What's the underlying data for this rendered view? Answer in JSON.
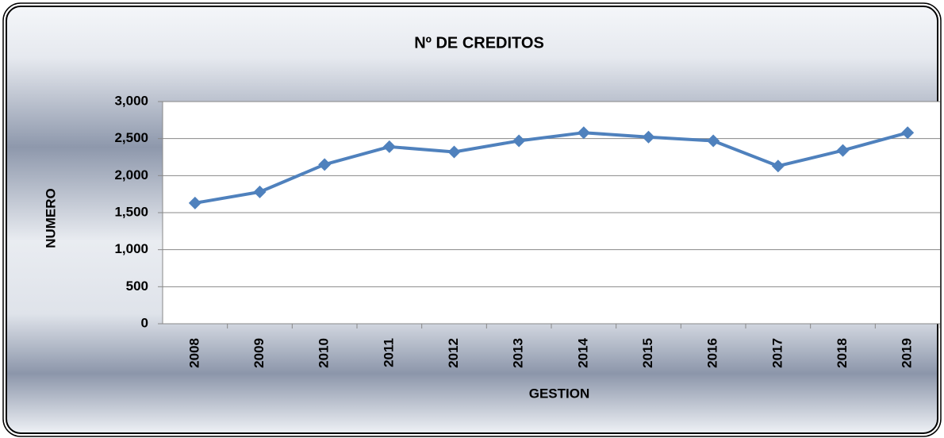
{
  "chart_data": {
    "type": "line",
    "title": "Nº DE CREDITOS",
    "x_label": "GESTION",
    "y_label": "NUMERO",
    "categories": [
      "2008",
      "2009",
      "2010",
      "2011",
      "2012",
      "2013",
      "2014",
      "2015",
      "2016",
      "2017",
      "2018",
      "2019"
    ],
    "series": [
      {
        "name": "Nº DE CREDITOS",
        "color": "#4f81bd",
        "values": [
          1630,
          1780,
          2150,
          2390,
          2320,
          2470,
          2580,
          2520,
          2470,
          2130,
          2340,
          2580
        ]
      }
    ],
    "ylim": [
      0,
      3000
    ],
    "yticks": [
      0,
      500,
      {
        "value": 1000,
        "label": "1,000"
      },
      {
        "value": 1500,
        "label": "1,500"
      },
      {
        "value": 2000,
        "label": "2,000"
      },
      {
        "value": 2500,
        "label": "2,500"
      },
      {
        "value": 3000,
        "label": "3,000"
      }
    ],
    "grid": true
  }
}
